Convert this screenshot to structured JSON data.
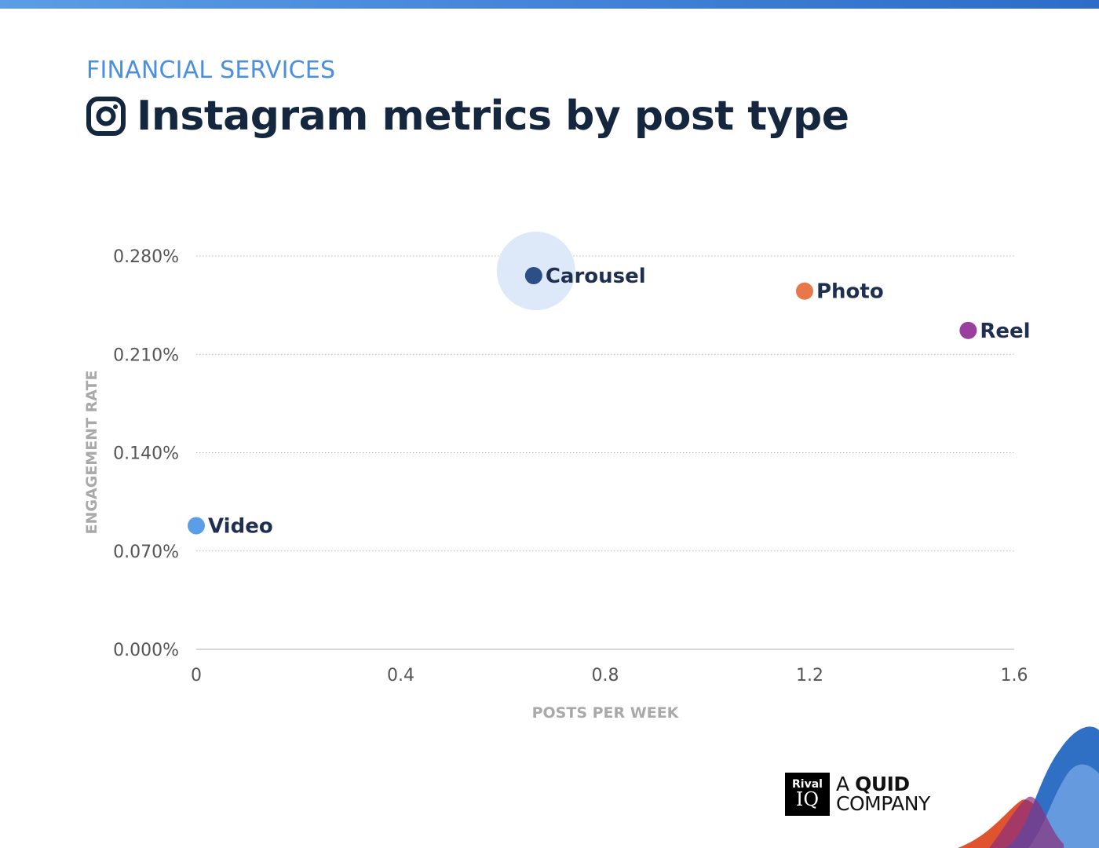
{
  "header": {
    "kicker": "FINANCIAL SERVICES",
    "title": "Instagram metrics by post type",
    "title_icon": "instagram-icon"
  },
  "colors": {
    "accent": "#4a8fe0",
    "title": "#14273f",
    "label": "#1f2f52",
    "axis_title": "#a9a9a9"
  },
  "chart_data": {
    "type": "scatter",
    "title": "Instagram metrics by post type",
    "xlabel": "POSTS PER WEEK",
    "ylabel": "ENGAGEMENT RATE",
    "xlim": [
      0,
      1.6
    ],
    "ylim": [
      0,
      0.28
    ],
    "x_ticks": [
      "0",
      "0.4",
      "0.8",
      "1.2",
      "1.6"
    ],
    "y_ticks": [
      "0.000%",
      "0.070%",
      "0.140%",
      "0.210%",
      "0.280%"
    ],
    "grid": true,
    "points": [
      {
        "name": "Video",
        "x": 0.0,
        "y": 0.088,
        "color": "#5a9ee8",
        "highlight": false
      },
      {
        "name": "Carousel",
        "x": 0.66,
        "y": 0.266,
        "color": "#2b4f86",
        "highlight": true
      },
      {
        "name": "Photo",
        "x": 1.19,
        "y": 0.255,
        "color": "#e8784a",
        "highlight": false
      },
      {
        "name": "Reel",
        "x": 1.51,
        "y": 0.227,
        "color": "#9a3fa0",
        "highlight": false
      }
    ]
  },
  "branding": {
    "logo_top": "Rival",
    "logo_bottom": "IQ",
    "tagline_line1_prefix": "A ",
    "tagline_line1_bold": "QUID",
    "tagline_line2": "COMPANY"
  }
}
